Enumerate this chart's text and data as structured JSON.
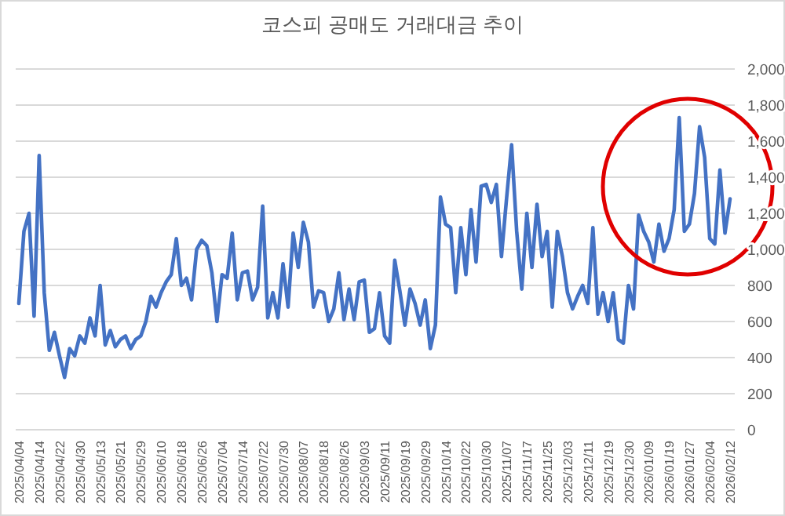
{
  "chart_data": {
    "type": "line",
    "title": "코스피 공매도 거래대금 추이",
    "categories": [
      "2025/04/04",
      null,
      null,
      null,
      "2025/04/14",
      null,
      null,
      null,
      "2025/04/22",
      null,
      null,
      null,
      "2025/04/30",
      null,
      null,
      null,
      "2025/05/13",
      null,
      null,
      null,
      "2025/05/21",
      null,
      null,
      null,
      "2025/05/29",
      null,
      null,
      null,
      "2025/06/10",
      null,
      null,
      null,
      "2025/06/18",
      null,
      null,
      null,
      "2025/06/26",
      null,
      null,
      null,
      "2025/07/04",
      null,
      null,
      null,
      "2025/07/14",
      null,
      null,
      null,
      "2025/07/22",
      null,
      null,
      null,
      "2025/07/30",
      null,
      null,
      null,
      "2025/08/07",
      null,
      null,
      null,
      "2025/08/18",
      null,
      null,
      null,
      "2025/08/26",
      null,
      null,
      null,
      "2025/09/03",
      null,
      null,
      null,
      "2025/09/11",
      null,
      null,
      null,
      "2025/09/19",
      null,
      null,
      null,
      "2025/09/29",
      null,
      null,
      null,
      "2025/10/14",
      null,
      null,
      null,
      "2025/10/22",
      null,
      null,
      null,
      "2025/10/30",
      null,
      null,
      null,
      "2025/11/07",
      null,
      null,
      null,
      "2025/11/17",
      null,
      null,
      null,
      "2025/11/25",
      null,
      null,
      null,
      "2025/12/03",
      null,
      null,
      null,
      "2025/12/11",
      null,
      null,
      null,
      "2025/12/19",
      null,
      null,
      null,
      "2025/12/30",
      null,
      null,
      null,
      "2026/01/09",
      null,
      null,
      null,
      "2026/01/19",
      null,
      null,
      null,
      "2026/01/27",
      null,
      null,
      null,
      "2026/02/04",
      null,
      null,
      null,
      "2026/02/12"
    ],
    "values": [
      700,
      1100,
      1200,
      630,
      1520,
      760,
      440,
      540,
      410,
      290,
      450,
      410,
      520,
      480,
      620,
      520,
      800,
      470,
      550,
      460,
      500,
      520,
      450,
      500,
      520,
      600,
      740,
      680,
      760,
      820,
      860,
      1060,
      800,
      840,
      720,
      1000,
      1050,
      1020,
      870,
      600,
      860,
      840,
      1090,
      720,
      870,
      880,
      720,
      790,
      1240,
      620,
      760,
      620,
      920,
      680,
      1090,
      900,
      1150,
      1040,
      680,
      770,
      760,
      600,
      670,
      870,
      610,
      780,
      610,
      820,
      830,
      540,
      560,
      760,
      520,
      480,
      940,
      770,
      580,
      780,
      700,
      580,
      720,
      450,
      580,
      1290,
      1140,
      1120,
      760,
      1120,
      860,
      1220,
      930,
      1350,
      1360,
      1260,
      1360,
      960,
      1280,
      1580,
      1100,
      780,
      1200,
      900,
      1250,
      960,
      1100,
      680,
      1100,
      960,
      760,
      670,
      740,
      800,
      700,
      1120,
      640,
      760,
      600,
      760,
      500,
      480,
      800,
      670,
      1190,
      1100,
      1040,
      930,
      1140,
      990,
      1060,
      1220,
      1730,
      1100,
      1140,
      1310,
      1680,
      1510,
      1060,
      1030,
      1440,
      1090,
      1280
    ],
    "color": "#4472c4",
    "ylim": [
      0,
      2000
    ],
    "yticks": [
      0,
      200,
      400,
      600,
      800,
      {
        "value": 1000,
        "label": "1,000"
      },
      {
        "value": 1200,
        "label": "1,200"
      },
      {
        "value": 1400,
        "label": "1,400"
      },
      {
        "value": 1600,
        "label": "1,600"
      },
      {
        "value": 1800,
        "label": "1,800"
      },
      {
        "value": 2000,
        "label": "2,000"
      }
    ],
    "grid": "y"
  }
}
